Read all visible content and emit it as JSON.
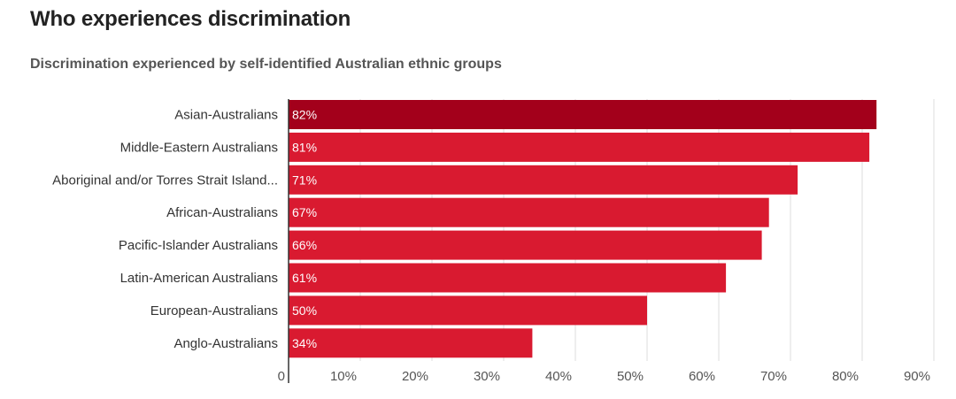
{
  "chart_data": {
    "type": "bar",
    "orientation": "horizontal",
    "title": "Who experiences discrimination",
    "subtitle": "Discrimination experienced by self-identified Australian ethnic groups",
    "categories": [
      "Asian-Australians",
      "Middle-Eastern Australians",
      "Aboriginal and/or Torres Strait Island...",
      "African-Australians",
      "Pacific-Islander Australians",
      "Latin-American Australians",
      "European-Australians",
      "Anglo-Australians"
    ],
    "values": [
      82,
      81,
      71,
      67,
      66,
      61,
      50,
      34
    ],
    "data_labels": [
      "82%",
      "81%",
      "71%",
      "67%",
      "66%",
      "61%",
      "50%",
      "34%"
    ],
    "x_ticks": [
      0,
      10,
      20,
      30,
      40,
      50,
      60,
      70,
      80,
      90
    ],
    "x_tick_labels": [
      "0",
      "10%",
      "20%",
      "30%",
      "40%",
      "50%",
      "60%",
      "70%",
      "80%",
      "90%"
    ],
    "xlim": [
      0,
      90
    ],
    "xlabel": "",
    "ylabel": "",
    "grid": true,
    "colors": {
      "bar": "#d91a30",
      "bar_highlight": "#a3001b",
      "grid": "#dddddd",
      "axis": "#333333"
    },
    "highlight_index": 0
  }
}
